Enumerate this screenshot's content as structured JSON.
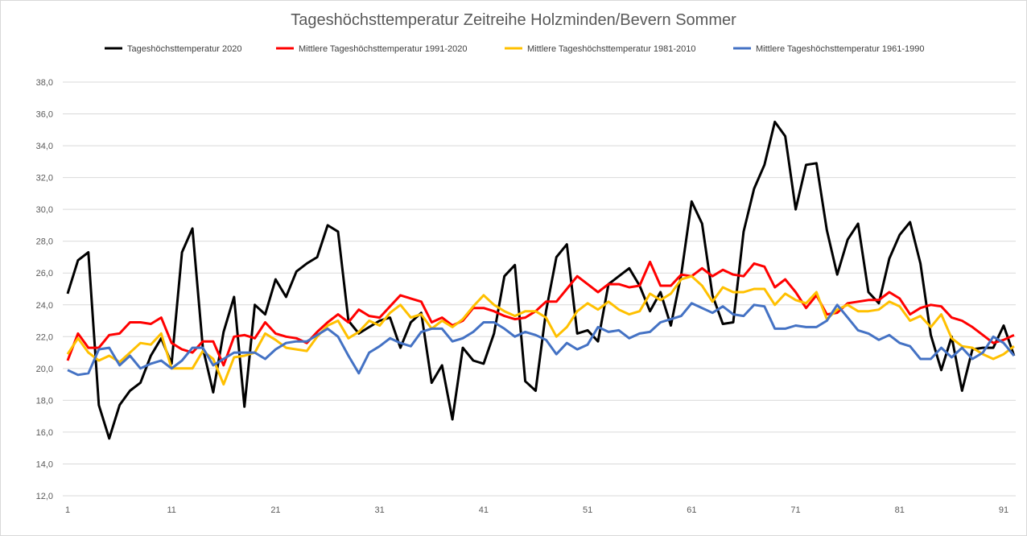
{
  "chart_data": {
    "type": "line",
    "title": "Tageshöchsttemperatur Zeitreihe Holzminden/Bevern Sommer",
    "xlabel": "",
    "ylabel": "",
    "ylim": [
      12,
      38
    ],
    "ystep": 2,
    "yticks": [
      "12,0",
      "14,0",
      "16,0",
      "18,0",
      "20,0",
      "22,0",
      "24,0",
      "26,0",
      "28,0",
      "30,0",
      "32,0",
      "34,0",
      "36,0",
      "38,0"
    ],
    "xticks": [
      "1",
      "11",
      "21",
      "31",
      "41",
      "51",
      "61",
      "71",
      "81",
      "91"
    ],
    "xrange": [
      1,
      92
    ],
    "grid": true,
    "legend_position": "top",
    "series": [
      {
        "name": "Tageshöchsttemperatur 2020",
        "color": "#000000",
        "values": [
          24.7,
          26.8,
          27.3,
          17.7,
          15.6,
          17.7,
          18.6,
          19.1,
          20.8,
          21.9,
          20.3,
          27.3,
          28.8,
          21.3,
          18.5,
          22.3,
          24.5,
          17.6,
          24.0,
          23.4,
          25.6,
          24.5,
          26.1,
          26.6,
          27.0,
          29.0,
          28.6,
          23.0,
          22.2,
          22.6,
          23.0,
          23.2,
          21.3,
          22.9,
          23.5,
          19.1,
          20.2,
          16.8,
          21.3,
          20.5,
          20.3,
          22.2,
          25.8,
          26.5,
          19.2,
          18.6,
          23.6,
          27.0,
          27.8,
          22.2,
          22.4,
          21.7,
          25.3,
          25.8,
          26.3,
          25.2,
          23.6,
          24.8,
          22.7,
          25.9,
          30.5,
          29.1,
          24.6,
          22.8,
          22.9,
          28.6,
          31.3,
          32.8,
          35.5,
          34.6,
          30.0,
          32.8,
          32.9,
          28.7,
          25.9,
          28.1,
          29.1,
          24.8,
          24.1,
          26.9,
          28.4,
          29.2,
          26.6,
          22.1,
          19.9,
          22.0,
          18.6,
          21.2,
          21.3,
          21.3,
          22.7,
          20.8
        ]
      },
      {
        "name": "Mittlere Tageshöchsttemperatur 1991-2020",
        "color": "#ff0000",
        "values": [
          20.5,
          22.2,
          21.3,
          21.3,
          22.1,
          22.2,
          22.9,
          22.9,
          22.8,
          23.2,
          21.6,
          21.2,
          21.0,
          21.7,
          21.7,
          20.2,
          22.0,
          22.1,
          21.9,
          22.9,
          22.2,
          22.0,
          21.9,
          21.6,
          22.3,
          22.9,
          23.4,
          22.9,
          23.7,
          23.3,
          23.2,
          23.9,
          24.6,
          24.4,
          24.2,
          22.9,
          23.2,
          22.7,
          23.0,
          23.8,
          23.8,
          23.6,
          23.3,
          23.1,
          23.2,
          23.6,
          24.2,
          24.2,
          25.0,
          25.8,
          25.3,
          24.8,
          25.3,
          25.3,
          25.1,
          25.2,
          26.7,
          25.2,
          25.2,
          25.9,
          25.8,
          26.3,
          25.8,
          26.2,
          25.9,
          25.8,
          26.6,
          26.4,
          25.1,
          25.6,
          24.8,
          23.8,
          24.6,
          23.4,
          23.5,
          24.1,
          24.2,
          24.3,
          24.3,
          24.8,
          24.4,
          23.4,
          23.8,
          24.0,
          23.9,
          23.2,
          23.0,
          22.6,
          22.1,
          21.6,
          21.8,
          22.1
        ]
      },
      {
        "name": "Mittlere Tageshöchsttemperatur 1981-2010",
        "color": "#ffc000",
        "values": [
          20.9,
          21.9,
          21.0,
          20.5,
          20.8,
          20.4,
          21.0,
          21.6,
          21.5,
          22.2,
          20.0,
          20.0,
          20.0,
          21.1,
          20.6,
          19.0,
          20.7,
          20.8,
          21.0,
          22.2,
          21.8,
          21.3,
          21.2,
          21.1,
          22.0,
          22.7,
          23.0,
          21.9,
          22.3,
          23.0,
          22.7,
          23.5,
          24.0,
          23.2,
          23.4,
          22.5,
          23.0,
          22.6,
          23.1,
          23.9,
          24.6,
          24.0,
          23.6,
          23.3,
          23.6,
          23.6,
          23.2,
          22.0,
          22.6,
          23.6,
          24.1,
          23.7,
          24.2,
          23.7,
          23.4,
          23.6,
          24.7,
          24.3,
          24.7,
          25.6,
          25.8,
          25.2,
          24.2,
          25.1,
          24.8,
          24.8,
          25.0,
          25.0,
          24.0,
          24.7,
          24.3,
          24.1,
          24.8,
          23.1,
          23.7,
          24.0,
          23.6,
          23.6,
          23.7,
          24.2,
          23.9,
          23.0,
          23.3,
          22.6,
          23.4,
          21.9,
          21.4,
          21.3,
          20.9,
          20.6,
          20.9,
          21.4
        ]
      },
      {
        "name": "Mittlere Tageshöchsttemperatur 1961-1990",
        "color": "#4472c4",
        "values": [
          19.9,
          19.6,
          19.7,
          21.2,
          21.3,
          20.2,
          20.8,
          20.0,
          20.3,
          20.5,
          20.0,
          20.5,
          21.3,
          21.3,
          20.2,
          20.6,
          21.0,
          21.0,
          21.0,
          20.6,
          21.2,
          21.6,
          21.7,
          21.7,
          22.1,
          22.5,
          22.0,
          20.8,
          19.7,
          21.0,
          21.4,
          21.9,
          21.6,
          21.4,
          22.3,
          22.5,
          22.5,
          21.7,
          21.9,
          22.3,
          22.9,
          22.9,
          22.5,
          22.0,
          22.3,
          22.1,
          21.8,
          20.9,
          21.6,
          21.2,
          21.5,
          22.6,
          22.3,
          22.4,
          21.9,
          22.2,
          22.3,
          22.9,
          23.1,
          23.3,
          24.1,
          23.8,
          23.5,
          23.9,
          23.4,
          23.3,
          24.0,
          23.9,
          22.5,
          22.5,
          22.7,
          22.6,
          22.6,
          23.0,
          24.0,
          23.2,
          22.4,
          22.2,
          21.8,
          22.1,
          21.6,
          21.4,
          20.6,
          20.6,
          21.3,
          20.7,
          21.3,
          20.6,
          21.0,
          22.0,
          21.6,
          20.8
        ]
      }
    ]
  }
}
